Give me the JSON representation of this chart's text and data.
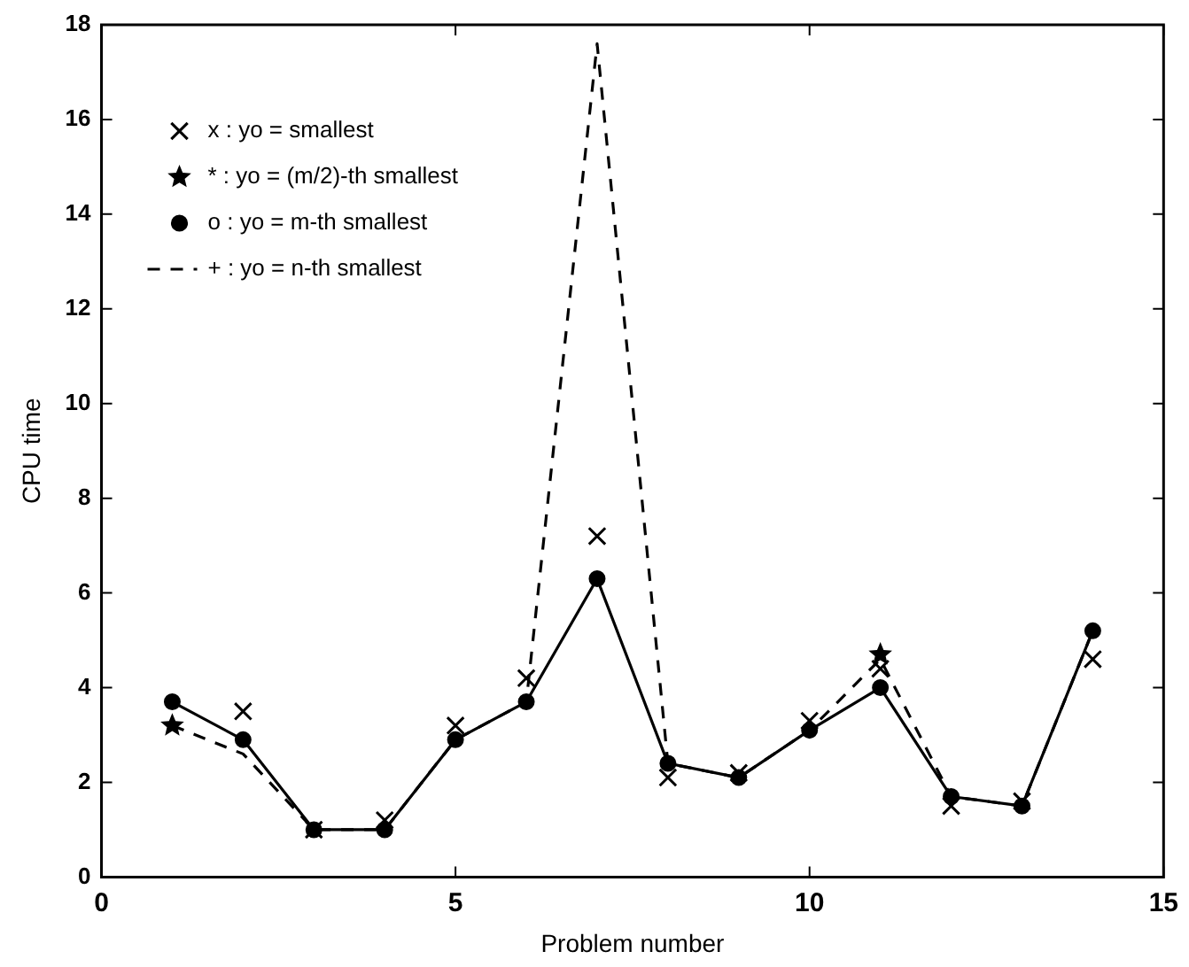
{
  "chart_data": {
    "type": "line",
    "xlabel": "Problem number",
    "ylabel": "CPU time",
    "x": [
      1,
      2,
      3,
      4,
      5,
      6,
      7,
      8,
      9,
      10,
      11,
      12,
      13,
      14
    ],
    "series": [
      {
        "name": "x : yo = smallest",
        "type": "scatter",
        "color": "#000000",
        "marker": "cross",
        "values": [
          null,
          3.5,
          1.0,
          1.2,
          3.2,
          4.2,
          7.2,
          2.1,
          2.2,
          3.3,
          4.4,
          1.5,
          1.6,
          4.6
        ]
      },
      {
        "name": "* : yo = (m/2)-th smallest",
        "type": "scatter",
        "color": "#000000",
        "marker": "star",
        "values": [
          3.2,
          null,
          null,
          null,
          null,
          null,
          null,
          null,
          null,
          null,
          4.7,
          null,
          null,
          null
        ]
      },
      {
        "name": "o : yo = m-th smallest",
        "color": "#000000",
        "marker": "circle",
        "line_style": "solid",
        "values": [
          3.7,
          2.9,
          1.0,
          1.0,
          2.9,
          3.7,
          6.3,
          2.4,
          2.1,
          3.1,
          4.0,
          1.7,
          1.5,
          5.2
        ]
      },
      {
        "name": "+ : yo = n-th smallest",
        "color": "#000000",
        "marker": "none",
        "line_style": "dashed",
        "values": [
          3.2,
          2.6,
          1.0,
          1.0,
          2.9,
          3.7,
          17.6,
          2.4,
          2.1,
          3.1,
          4.6,
          1.7,
          1.5,
          5.2
        ]
      }
    ],
    "xlim": [
      0,
      15
    ],
    "xticks": [
      0,
      5,
      10,
      15
    ],
    "ylim": [
      0,
      18
    ],
    "yticks": [
      0,
      2,
      4,
      6,
      8,
      10,
      12,
      14,
      16,
      18
    ],
    "grid": false,
    "legend": "top left"
  }
}
